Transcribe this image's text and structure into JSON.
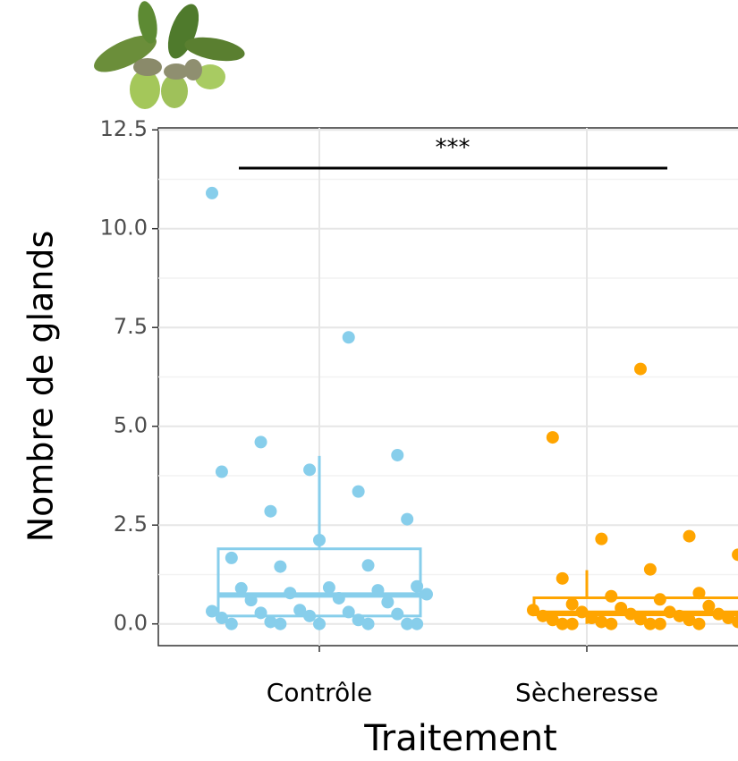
{
  "chart_data": {
    "type": "box",
    "x_label": "Traitement",
    "y_label": "Nombre de glands",
    "categories": [
      "Contrôle",
      "Sècheresse"
    ],
    "annotation": "***",
    "ylim": [
      -0.55,
      12.55
    ],
    "yticks": [
      {
        "value": 0,
        "label": "0.0"
      },
      {
        "value": 2.5,
        "label": "2.5"
      },
      {
        "value": 5,
        "label": "5.0"
      },
      {
        "value": 7.5,
        "label": "7.5"
      },
      {
        "value": 10,
        "label": "10.0"
      },
      {
        "value": 12.5,
        "label": "12.5"
      }
    ],
    "grid": true,
    "series": [
      {
        "color": "#87ceeb",
        "box": {
          "whisker_low": 0,
          "q1": 0.2,
          "median": 0.73,
          "q3": 1.9,
          "whisker_high": 4.25
        },
        "values": [
          10.9,
          7.25,
          4.6,
          4.27,
          3.9,
          3.85,
          3.35,
          2.85,
          2.65,
          2.12,
          1.67,
          1.48,
          1.45,
          0.95,
          0.92,
          0.9,
          0.85,
          0.78,
          0.75,
          0.65,
          0.6,
          0.55,
          0.35,
          0.32,
          0.3,
          0.28,
          0.25,
          0.2,
          0.15,
          0.1,
          0.05,
          0,
          0,
          0,
          0,
          0,
          0
        ]
      },
      {
        "color": "#ffa500",
        "box": {
          "whisker_low": 0,
          "q1": 0.23,
          "median": 0.27,
          "q3": 0.66,
          "whisker_high": 1.36
        },
        "values": [
          6.45,
          4.72,
          2.22,
          2.15,
          1.75,
          1.38,
          1.15,
          0.78,
          0.7,
          0.65,
          0.62,
          0.5,
          0.45,
          0.4,
          0.35,
          0.3,
          0.3,
          0.25,
          0.25,
          0.2,
          0.2,
          0.15,
          0.15,
          0.12,
          0.1,
          0.1,
          0.05,
          0.05,
          0,
          0,
          0,
          0,
          0,
          0,
          0
        ]
      }
    ]
  }
}
